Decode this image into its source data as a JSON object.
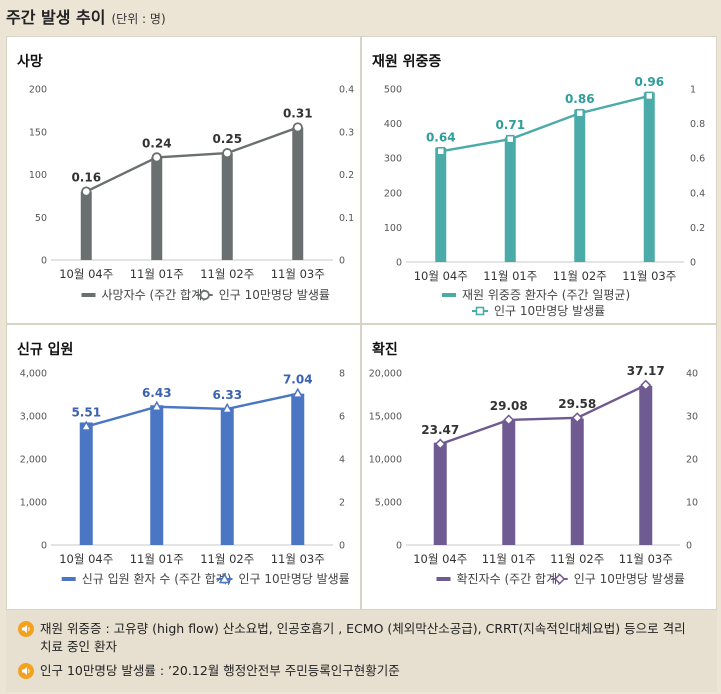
{
  "header": {
    "title": "주간 발생 추이",
    "unit": "(단위 : 명)"
  },
  "chart_data": [
    {
      "id": "death",
      "type": "bar",
      "title": "사망",
      "categories": [
        "10월 04주",
        "11월 01주",
        "11월 02주",
        "11월 03주"
      ],
      "series": [
        {
          "name": "사망자수 (주간 합계)",
          "values": [
            80,
            120,
            125,
            155
          ],
          "kind": "bar"
        },
        {
          "name": "인구 10만명당 발생률",
          "values": [
            0.16,
            0.24,
            0.25,
            0.31
          ],
          "kind": "line"
        }
      ],
      "labels": [
        "0.16",
        "0.24",
        "0.25",
        "0.31"
      ],
      "ylim": [
        0,
        200
      ],
      "y2lim": [
        0,
        0.4
      ],
      "yticks": [
        "0",
        "50",
        "100",
        "150",
        "200"
      ],
      "y2ticks": [
        "0",
        "0.1",
        "0.2",
        "0.3",
        "0.4"
      ],
      "color": "#6a706f",
      "label_color": "#333333",
      "marker": "circle"
    },
    {
      "id": "severe",
      "type": "bar",
      "title": "재원 위중증",
      "categories": [
        "10월 04주",
        "11월 01주",
        "11월 02주",
        "11월 03주"
      ],
      "series": [
        {
          "name": "재원 위중증 환자수 (주간 일평균)",
          "values": [
            330,
            360,
            440,
            490
          ],
          "kind": "bar"
        },
        {
          "name": "인구 10만명당 발생률",
          "values": [
            0.64,
            0.71,
            0.86,
            0.96
          ],
          "kind": "line"
        }
      ],
      "labels": [
        "0.64",
        "0.71",
        "0.86",
        "0.96"
      ],
      "ylim": [
        0,
        500
      ],
      "y2lim": [
        0,
        1
      ],
      "yticks": [
        "0",
        "100",
        "200",
        "300",
        "400",
        "500"
      ],
      "y2ticks": [
        "0",
        "0.2",
        "0.4",
        "0.6",
        "0.8",
        "1"
      ],
      "color": "#4aaba9",
      "label_color": "#2e9e9a",
      "marker": "square"
    },
    {
      "id": "icu",
      "type": "bar",
      "title": "신규 입원",
      "categories": [
        "10월 04주",
        "11월 01주",
        "11월 02주",
        "11월 03주"
      ],
      "series": [
        {
          "name": "신규 입원 환자 수 (주간 합계)",
          "values": [
            2850,
            3250,
            3180,
            3520
          ],
          "kind": "bar"
        },
        {
          "name": "인구 10만명당 발생률",
          "values": [
            5.51,
            6.43,
            6.33,
            7.04
          ],
          "kind": "line"
        }
      ],
      "labels": [
        "5.51",
        "6.43",
        "6.33",
        "7.04"
      ],
      "ylim": [
        0,
        4000
      ],
      "y2lim": [
        0,
        8
      ],
      "yticks": [
        "0",
        "1,000",
        "2,000",
        "3,000",
        "4,000"
      ],
      "y2ticks": [
        "0",
        "2",
        "4",
        "6",
        "8"
      ],
      "color": "#4a76c4",
      "label_color": "#3a62b0",
      "marker": "triangle"
    },
    {
      "id": "confirmed",
      "type": "bar",
      "title": "확진",
      "categories": [
        "10월 04주",
        "11월 01주",
        "11월 02주",
        "11월 03주"
      ],
      "series": [
        {
          "name": "확진자수 (주간 합계)",
          "values": [
            11900,
            14500,
            14700,
            18500
          ],
          "kind": "bar"
        },
        {
          "name": "인구 10만명당 발생률",
          "values": [
            23.47,
            29.08,
            29.58,
            37.17
          ],
          "kind": "line"
        }
      ],
      "labels": [
        "23.47",
        "29.08",
        "29.58",
        "37.17"
      ],
      "ylim": [
        0,
        20000
      ],
      "y2lim": [
        0,
        40
      ],
      "yticks": [
        "0",
        "5,000",
        "10,000",
        "15,000",
        "20,000"
      ],
      "y2ticks": [
        "0",
        "10",
        "20",
        "30",
        "40"
      ],
      "color": "#6f5a92",
      "label_color": "#333333",
      "marker": "diamond"
    }
  ],
  "notes": [
    {
      "icon": "speaker-icon",
      "text": "재원 위중증 : 고유량 (high flow) 산소요법, 인공호흡기 , ECMO (체외막산소공급), CRRT(지속적인대체요법) 등으로 격리 치료 중인 환자"
    },
    {
      "icon": "speaker-icon",
      "text": "인구 10만명당 발생률 : ’20.12월 행정안전부 주민등록인구현황기준"
    }
  ]
}
